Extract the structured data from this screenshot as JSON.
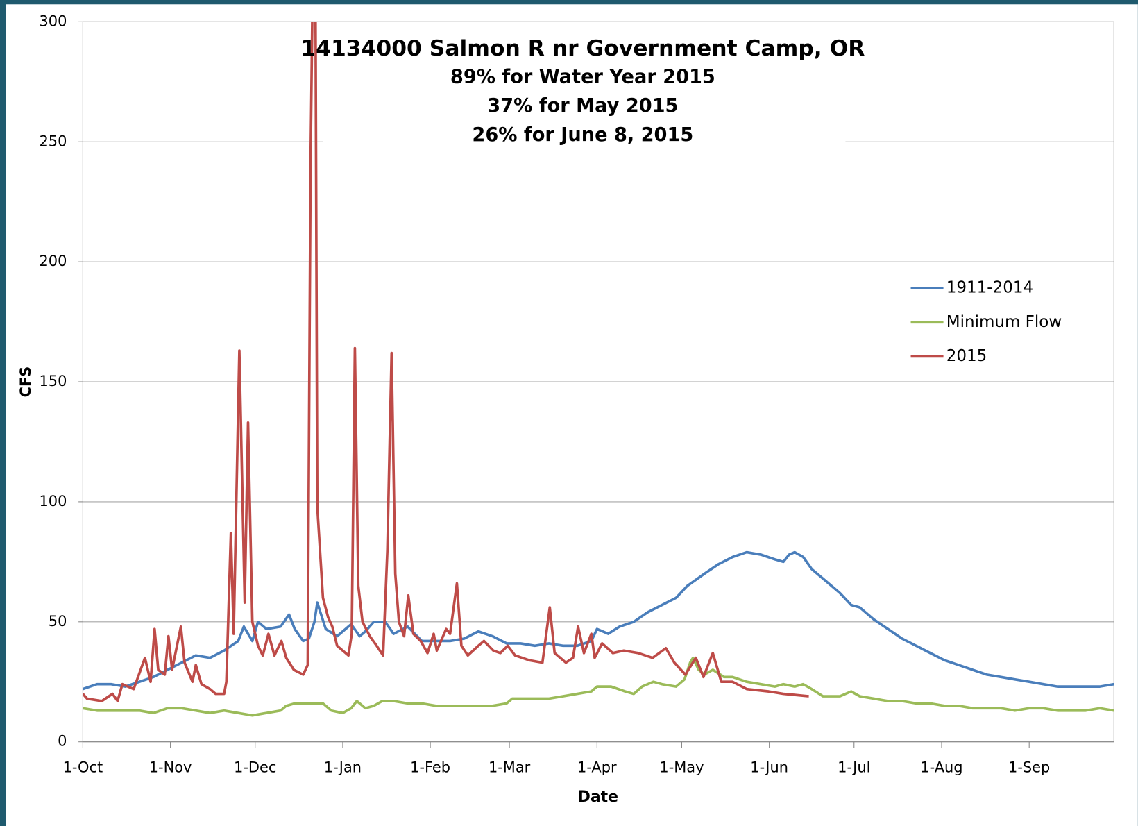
{
  "chart_data": {
    "type": "line",
    "title": "14134000  Salmon R nr Government Camp, OR",
    "subtitles": [
      "89% for Water Year 2015",
      "37% for May 2015",
      "26% for June 8, 2015"
    ],
    "x_label": "Date",
    "y_label": "CFS",
    "xlim": [
      0,
      365
    ],
    "xticks": [
      {
        "value": 0,
        "label": "1-Oct"
      },
      {
        "value": 31,
        "label": "1-Nov"
      },
      {
        "value": 61,
        "label": "1-Dec"
      },
      {
        "value": 92,
        "label": "1-Jan"
      },
      {
        "value": 123,
        "label": "1-Feb"
      },
      {
        "value": 151,
        "label": "1-Mar"
      },
      {
        "value": 182,
        "label": "1-Apr"
      },
      {
        "value": 212,
        "label": "1-May"
      },
      {
        "value": 243,
        "label": "1-Jun"
      },
      {
        "value": 273,
        "label": "1-Jul"
      },
      {
        "value": 304,
        "label": "1-Aug"
      },
      {
        "value": 335,
        "label": "1-Sep"
      }
    ],
    "ylim": [
      0,
      300
    ],
    "yticks": [
      0,
      50,
      100,
      150,
      200,
      250,
      300
    ],
    "grid": true,
    "legend": "right",
    "series": [
      {
        "name": "1911-2014",
        "color": "#4a7ebb",
        "x": [
          0,
          5,
          10,
          15,
          20,
          25,
          30,
          35,
          40,
          45,
          50,
          55,
          57,
          60,
          62,
          65,
          70,
          73,
          75,
          78,
          80,
          82,
          83,
          86,
          90,
          93,
          95,
          98,
          100,
          103,
          107,
          110,
          115,
          120,
          125,
          130,
          135,
          140,
          145,
          150,
          155,
          160,
          165,
          170,
          175,
          180,
          182,
          186,
          190,
          195,
          200,
          205,
          210,
          214,
          220,
          225,
          230,
          235,
          240,
          245,
          248,
          250,
          252,
          255,
          258,
          262,
          268,
          272,
          275,
          280,
          285,
          290,
          295,
          300,
          305,
          310,
          315,
          320,
          325,
          330,
          335,
          340,
          345,
          350,
          355,
          360,
          365
        ],
        "values": [
          22,
          24,
          24,
          23,
          25,
          27,
          30,
          33,
          36,
          35,
          38,
          42,
          48,
          42,
          50,
          47,
          48,
          53,
          47,
          42,
          43,
          50,
          58,
          47,
          44,
          47,
          49,
          44,
          46,
          50,
          50,
          45,
          48,
          42,
          42,
          42,
          43,
          46,
          44,
          41,
          41,
          40,
          41,
          40,
          40,
          42,
          47,
          45,
          48,
          50,
          54,
          57,
          60,
          65,
          70,
          74,
          77,
          79,
          78,
          76,
          75,
          78,
          79,
          77,
          72,
          68,
          62,
          57,
          56,
          51,
          47,
          43,
          40,
          37,
          34,
          32,
          30,
          28,
          27,
          26,
          25,
          24,
          23,
          23,
          23,
          23,
          24
        ]
      },
      {
        "name": "Minimum Flow",
        "color": "#9bbb59",
        "x": [
          0,
          5,
          10,
          20,
          25,
          30,
          35,
          40,
          45,
          50,
          55,
          60,
          65,
          70,
          72,
          75,
          80,
          85,
          88,
          92,
          95,
          97,
          100,
          103,
          106,
          110,
          115,
          120,
          125,
          130,
          135,
          140,
          145,
          150,
          152,
          160,
          165,
          170,
          175,
          180,
          182,
          187,
          192,
          195,
          198,
          202,
          205,
          210,
          213,
          215,
          216,
          218,
          220,
          223,
          227,
          230,
          235,
          240,
          245,
          248,
          252,
          255,
          258,
          262,
          268,
          272,
          275,
          280,
          285,
          290,
          295,
          300,
          305,
          310,
          315,
          320,
          325,
          330,
          335,
          340,
          345,
          350,
          355,
          360,
          365
        ],
        "values": [
          14,
          13,
          13,
          13,
          12,
          14,
          14,
          13,
          12,
          13,
          12,
          11,
          12,
          13,
          15,
          16,
          16,
          16,
          13,
          12,
          14,
          17,
          14,
          15,
          17,
          17,
          16,
          16,
          15,
          15,
          15,
          15,
          15,
          16,
          18,
          18,
          18,
          19,
          20,
          21,
          23,
          23,
          21,
          20,
          23,
          25,
          24,
          23,
          26,
          33,
          35,
          30,
          28,
          30,
          27,
          27,
          25,
          24,
          23,
          24,
          23,
          24,
          22,
          19,
          19,
          21,
          19,
          18,
          17,
          17,
          16,
          16,
          15,
          15,
          14,
          14,
          14,
          13,
          14,
          14,
          13,
          13,
          13,
          14,
          13
        ]
      },
      {
        "name": "2015",
        "color": "#be4b48",
        "x": [
          0,
          1.5,
          6.7,
          10.5,
          12.3,
          14,
          18,
          22,
          24,
          25.4,
          26.7,
          29,
          30.3,
          31.6,
          34.7,
          36,
          38.8,
          40,
          42,
          45,
          47,
          50,
          50.8,
          52.4,
          53.4,
          55.4,
          57.3,
          58.5,
          60,
          62,
          63.7,
          65.7,
          67.8,
          70.3,
          72,
          74.7,
          78,
          79.6,
          80.6,
          81.5,
          82.3,
          83,
          85,
          86.8,
          88.3,
          90,
          94,
          95.2,
          96.3,
          97.5,
          99,
          101.6,
          104,
          106.3,
          107.8,
          109.3,
          110.6,
          111.9,
          113.7,
          115.2,
          117,
          119.6,
          122,
          124.2,
          125.3,
          128.6,
          130,
          132.4,
          134,
          136.3,
          140,
          142,
          145.3,
          147.8,
          150.4,
          153,
          158,
          162.7,
          165.3,
          167,
          171,
          173.5,
          175.3,
          177.4,
          180,
          181.2,
          183.8,
          187.6,
          191.5,
          196.6,
          201.7,
          206.4,
          209.4,
          213.3,
          217,
          219.7,
          223,
          226,
          230,
          235,
          242.8,
          248,
          257
        ],
        "values": [
          20,
          18,
          17,
          20,
          17,
          24,
          22,
          35,
          25,
          47,
          30,
          28,
          44,
          30,
          48,
          33,
          25,
          32,
          24,
          22,
          20,
          20,
          25,
          87,
          45,
          163,
          58,
          133,
          50,
          40,
          36,
          45,
          36,
          42,
          35,
          30,
          28,
          32,
          240,
          330,
          330,
          98,
          60,
          52,
          48,
          40,
          36,
          45,
          164,
          65,
          50,
          44,
          40,
          36,
          80,
          162,
          70,
          50,
          44,
          61,
          45,
          42,
          37,
          45,
          38,
          47,
          45,
          66,
          40,
          36,
          40,
          42,
          38,
          37,
          40,
          36,
          34,
          33,
          56,
          37,
          33,
          35,
          48,
          37,
          45,
          35,
          41,
          37,
          38,
          37,
          35,
          39,
          33,
          28,
          35,
          27,
          37,
          25,
          25,
          22,
          21,
          20,
          19
        ]
      }
    ]
  }
}
